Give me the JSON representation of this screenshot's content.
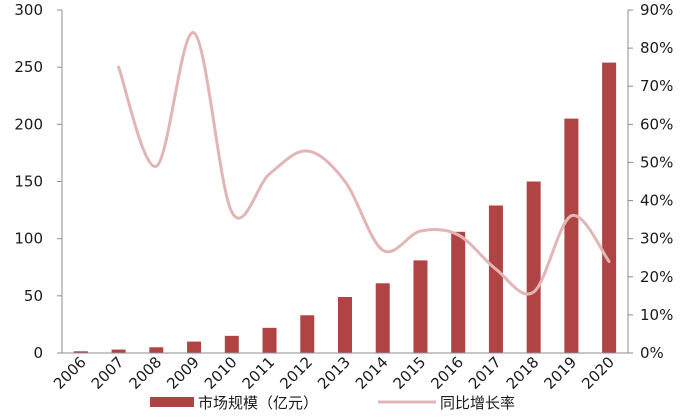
{
  "chart_data": {
    "type": "bar",
    "categories": [
      "2006",
      "2007",
      "2008",
      "2009",
      "2010",
      "2011",
      "2012",
      "2013",
      "2014",
      "2015",
      "2016",
      "2017",
      "2018",
      "2019",
      "2020"
    ],
    "series": [
      {
        "name": "市场规模（亿元）",
        "type": "bar",
        "axis": "left",
        "color": "#b04444",
        "values": [
          1.5,
          3,
          5,
          10,
          15,
          22,
          33,
          49,
          61,
          81,
          106,
          129,
          150,
          205,
          254
        ]
      },
      {
        "name": "同比增长率",
        "type": "line",
        "axis": "right",
        "color": "#e2b5b5",
        "values": [
          null,
          75,
          49,
          84,
          37,
          47,
          53,
          45,
          27,
          32,
          31,
          22,
          16,
          36,
          24
        ]
      }
    ],
    "y_left": {
      "min": 0,
      "max": 300,
      "ticks": [
        0,
        50,
        100,
        150,
        200,
        250,
        300
      ]
    },
    "y_right": {
      "min": 0,
      "max": 90,
      "unit": "%",
      "ticks": [
        "0%",
        "10%",
        "20%",
        "30%",
        "40%",
        "50%",
        "60%",
        "70%",
        "80%",
        "90%"
      ]
    },
    "legend_position": "bottom",
    "grid": false,
    "title": "",
    "xlabel": "",
    "ylabel": ""
  }
}
